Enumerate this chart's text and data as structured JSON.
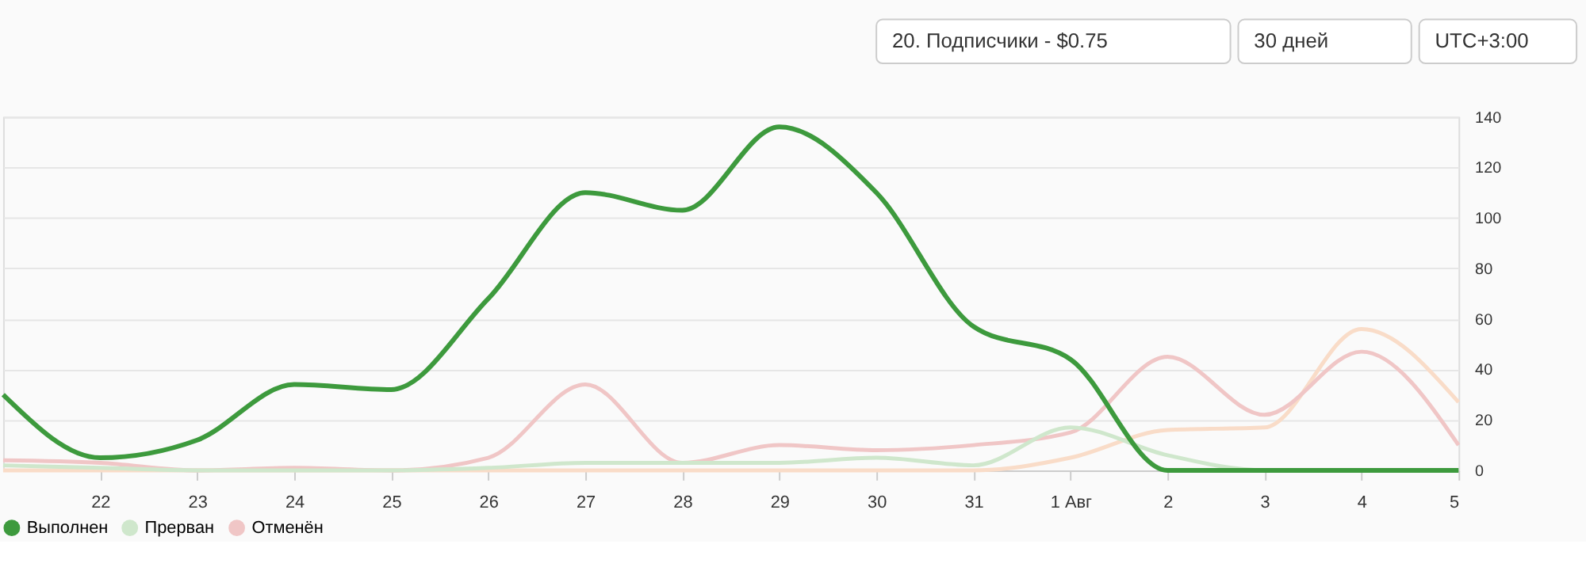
{
  "chart_data": {
    "type": "line",
    "annotations": [
      "20. Подписчики - $0.75",
      "30 дней",
      "UTC+3:00"
    ],
    "categories": [
      null,
      "22",
      "23",
      "24",
      "25",
      "26",
      "27",
      "28",
      "29",
      "30",
      "31",
      "1 Авг",
      "2",
      "3",
      "4",
      "5"
    ],
    "series": [
      {
        "name": "Выполнен",
        "color": "#3d9a3d",
        "values": [
          30,
          5,
          12,
          34,
          32,
          68,
          110,
          103,
          136,
          110,
          57,
          44,
          0,
          0,
          0,
          0
        ]
      },
      {
        "name": "Прерван",
        "color": "#cfe7cc",
        "values": [
          2,
          1,
          0,
          0,
          0,
          1,
          3,
          3,
          3,
          5,
          2,
          17,
          6,
          0,
          0,
          0
        ]
      },
      {
        "name": "Отменён",
        "color": "#f0c6c6",
        "values": [
          4,
          3,
          0,
          1,
          0,
          5,
          34,
          3,
          10,
          8,
          10,
          15,
          45,
          22,
          47,
          10
        ]
      },
      {
        "color": "#f9dcc8",
        "values": [
          0,
          0,
          0,
          0,
          0,
          0,
          0,
          0,
          0,
          0,
          0,
          5,
          16,
          17,
          56,
          27
        ]
      }
    ],
    "ylim": [
      0,
      140
    ],
    "yticks": [
      0,
      20,
      40,
      60,
      80,
      100,
      120,
      140
    ],
    "grid": "y",
    "legend": "bottom left",
    "marker": "none",
    "line_style": "solid"
  }
}
